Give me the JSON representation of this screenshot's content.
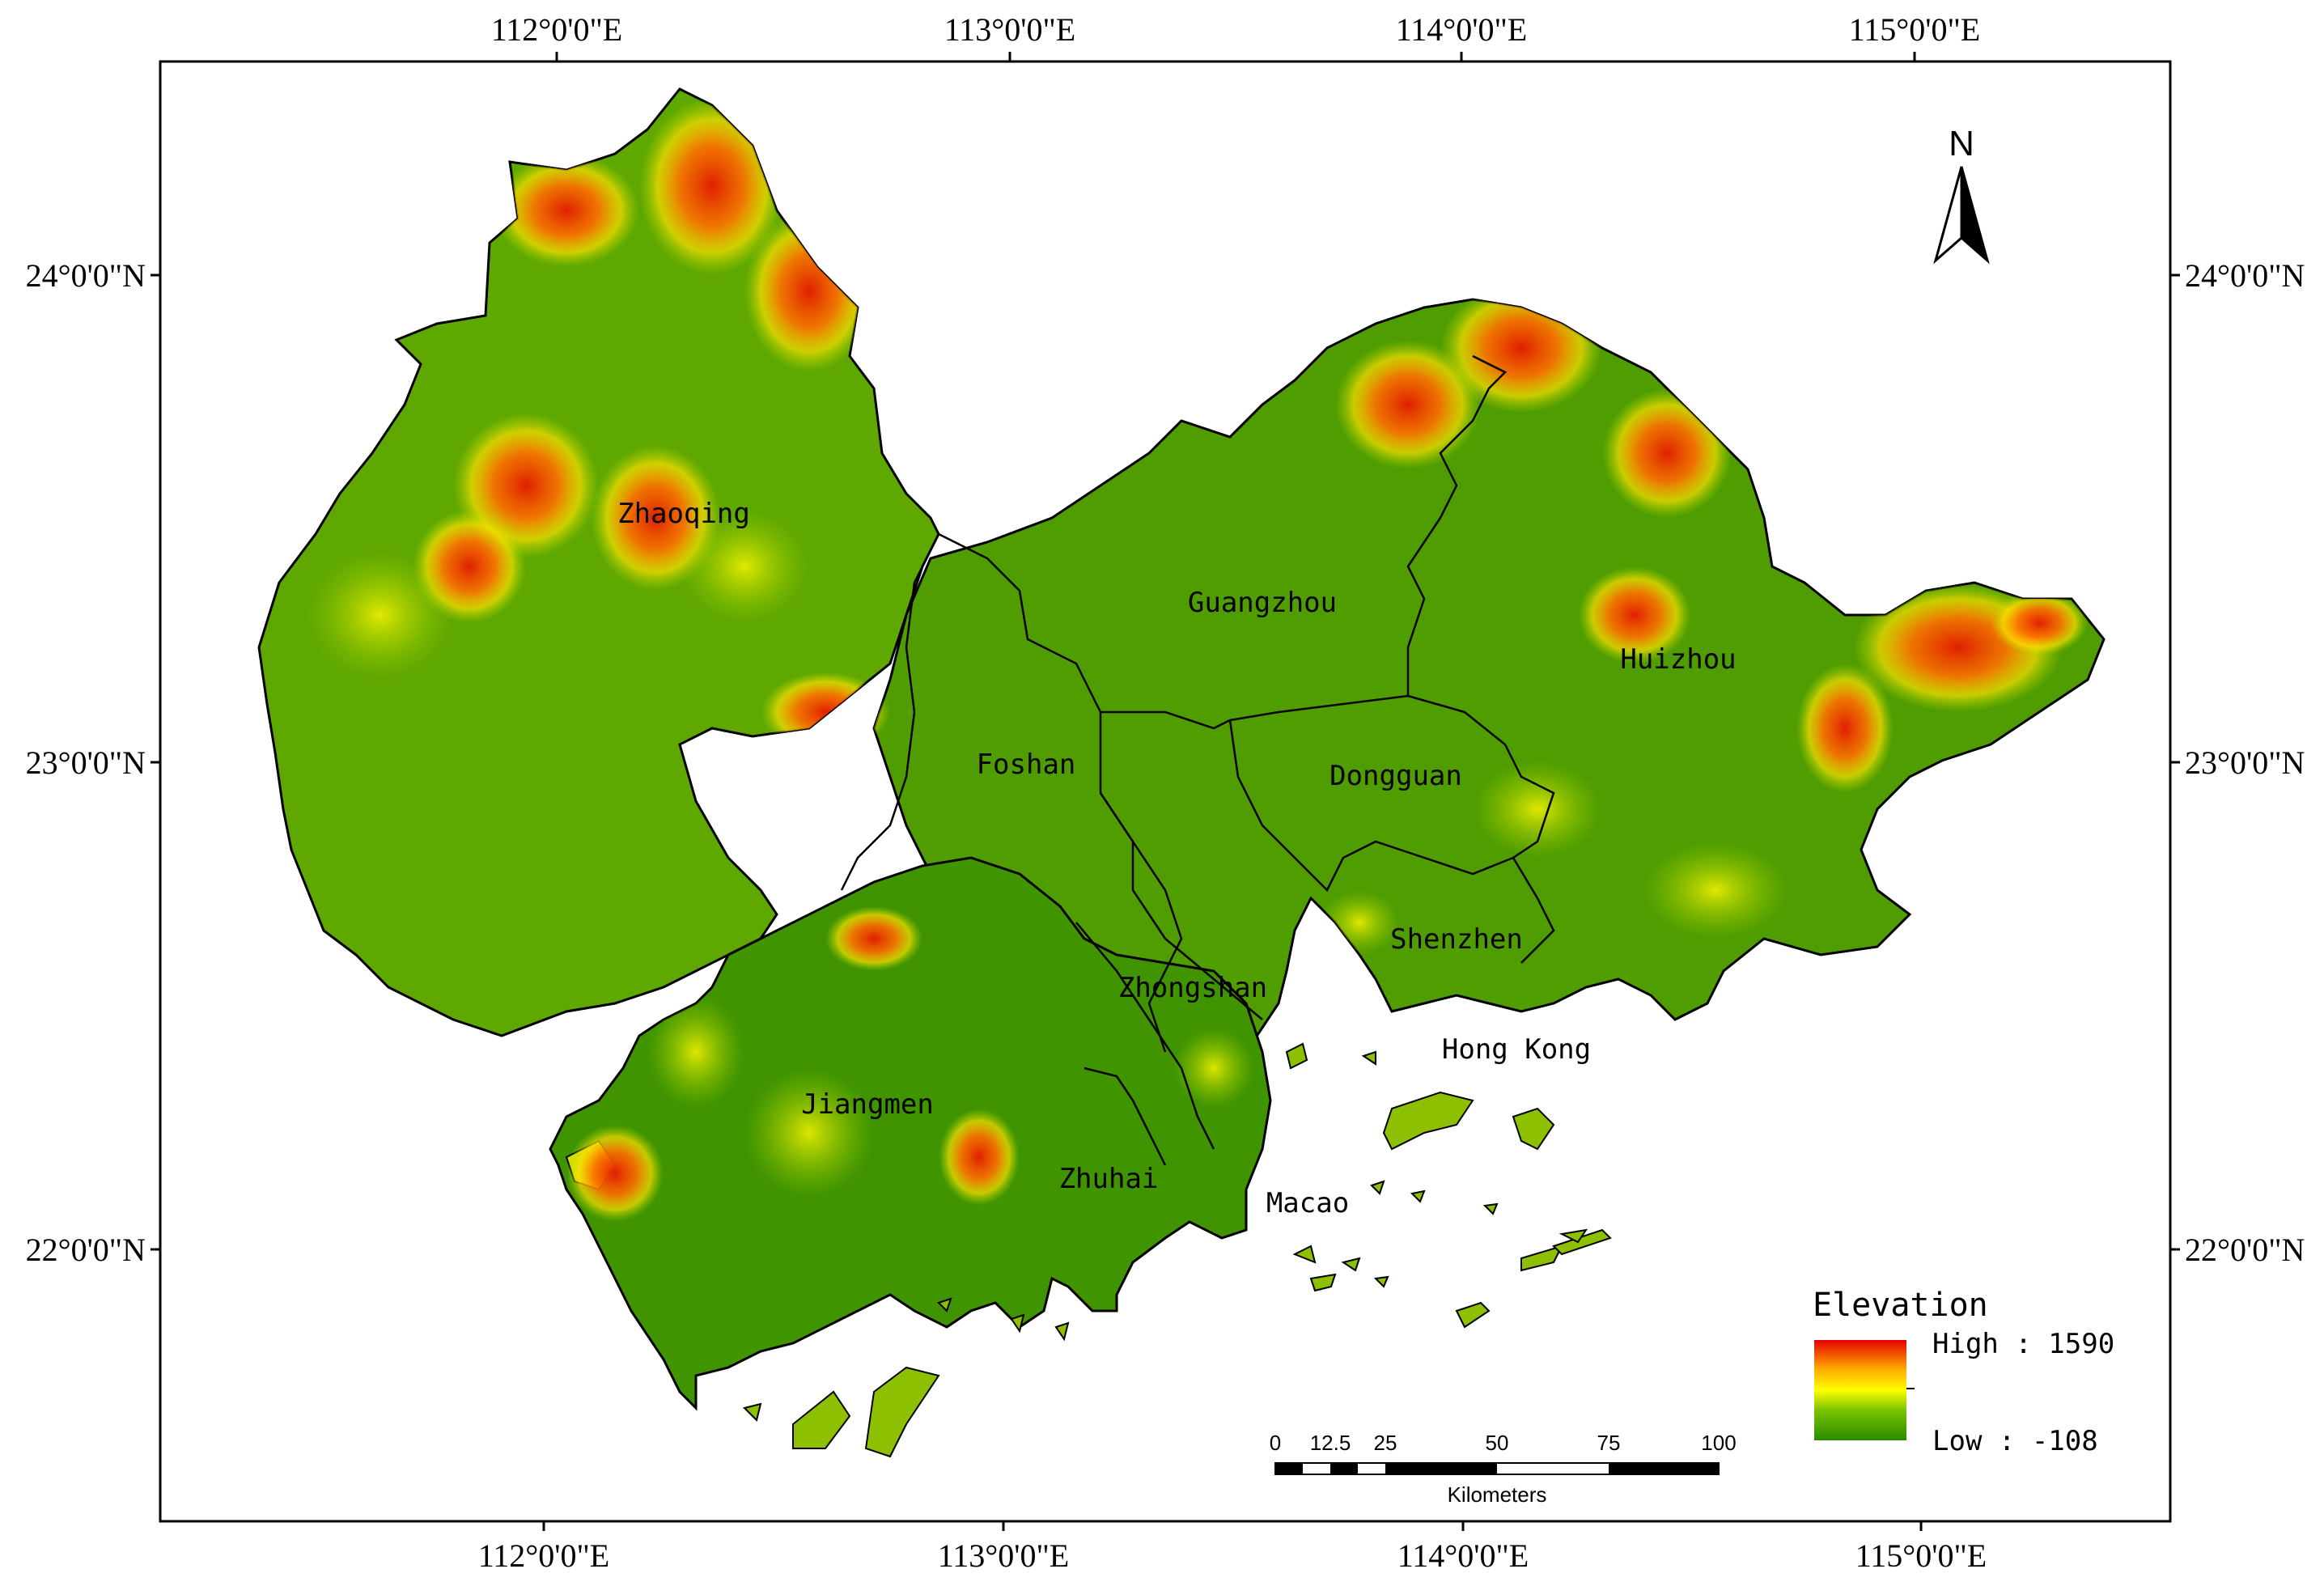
{
  "map": {
    "top_lon_labels": [
      "112°0'0\"E",
      "113°0'0\"E",
      "114°0'0\"E",
      "115°0'0\"E"
    ],
    "bottom_lon_labels": [
      "112°0'0\"E",
      "113°0'0\"E",
      "114°0'0\"E",
      "115°0'0\"E"
    ],
    "left_lat_labels": [
      "24°0'0\"N",
      "23°0'0\"N",
      "22°0'0\"N"
    ],
    "right_lat_labels": [
      "24°0'0\"N",
      "23°0'0\"N",
      "22°0'0\"N"
    ],
    "cities": {
      "zhaoqing": "Zhaoqing",
      "guangzhou": "Guangzhou",
      "huizhou": "Huizhou",
      "foshan": "Foshan",
      "dongguan": "Dongguan",
      "shenzhen": "Shenzhen",
      "zhongshan": "Zhongshan",
      "hongkong": "Hong Kong",
      "jiangmen": "Jiangmen",
      "zhuhai": "Zhuhai",
      "macao": "Macao"
    },
    "north_arrow": "N",
    "legend": {
      "title": "Elevation",
      "high": "High : 1590",
      "low": "Low : -108",
      "colors": [
        "#e60000",
        "#ffb800",
        "#ffff00",
        "#7ac300",
        "#2a8a00"
      ]
    },
    "scale_bar": {
      "ticks": [
        "0",
        "12.5",
        "25",
        "50",
        "75",
        "100"
      ],
      "unit": "Kilometers"
    }
  }
}
